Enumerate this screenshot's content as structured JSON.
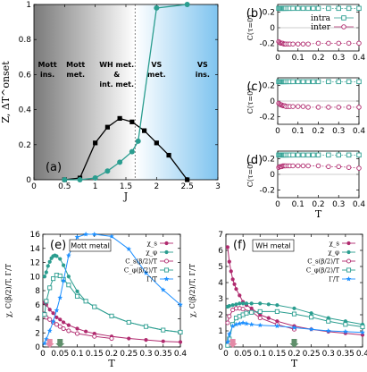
{
  "colors": {
    "black": "#000000",
    "teal": "#2a9d8f",
    "magenta": "#b02a6e",
    "blue": "#1e90ff",
    "gray_grad": "#8a8a8a",
    "blue_grad": "#7fc4ef",
    "arrow_pink": "#e48aa6",
    "arrow_green": "#5f8f6b"
  },
  "chart_data": [
    {
      "id": "a",
      "panel_label": "(a)",
      "type": "line",
      "xlabel": "J",
      "ylabel": "Z, ΔT^onset",
      "xlim": [
        0,
        3
      ],
      "ylim": [
        0,
        1
      ],
      "xticks": [
        "0",
        "0.5",
        "1",
        "1.5",
        "2",
        "2.5",
        "3"
      ],
      "yticks": [
        "0",
        "0.2",
        "0.4",
        "0.6",
        "0.8",
        "1"
      ],
      "vline": 1.65,
      "regions": [
        {
          "lines": [
            "Mott",
            "ins."
          ],
          "x": 0.22
        },
        {
          "lines": [
            "Mott",
            "met."
          ],
          "x": 0.68
        },
        {
          "lines": [
            "WH met.",
            "&",
            "int. met."
          ],
          "x": 1.35
        },
        {
          "lines": [
            "VS",
            "met."
          ],
          "x": 2.0
        },
        {
          "lines": [
            "VS",
            "ins."
          ],
          "x": 2.75
        }
      ],
      "series": [
        {
          "marker": "square",
          "color": "black",
          "x": [
            0.5,
            0.75,
            1.0,
            1.2,
            1.4,
            1.6,
            1.8,
            2.0,
            2.2,
            2.5
          ],
          "y": [
            0.0,
            0.01,
            0.21,
            0.3,
            0.35,
            0.33,
            0.28,
            0.21,
            0.14,
            0.0
          ]
        },
        {
          "marker": "circle",
          "color": "teal",
          "x": [
            0.5,
            0.75,
            1.0,
            1.2,
            1.4,
            1.6,
            1.7,
            2.0,
            2.5
          ],
          "y": [
            0.0,
            0.0,
            0.01,
            0.05,
            0.1,
            0.16,
            0.22,
            0.98,
            1.0
          ]
        }
      ]
    },
    {
      "id": "b",
      "panel_label": "(b)",
      "type": "scatter",
      "xlabel": "",
      "ylabel": "C(τ=0)",
      "xlim": [
        0,
        0.4
      ],
      "ylim": [
        -0.3,
        0.3
      ],
      "xticks": [
        "0",
        "0.1",
        "0.2",
        "0.3",
        "0.4"
      ],
      "yticks": [
        "-0.2",
        "0",
        "0.2"
      ],
      "series": [
        {
          "name": "intra",
          "marker": "square",
          "color": "teal",
          "x": [
            0.005,
            0.01,
            0.015,
            0.02,
            0.025,
            0.03,
            0.035,
            0.04,
            0.05,
            0.06,
            0.075,
            0.1,
            0.125,
            0.15,
            0.175,
            0.2,
            0.25,
            0.3,
            0.35,
            0.4
          ],
          "y": [
            0.25,
            0.25,
            0.25,
            0.25,
            0.25,
            0.25,
            0.25,
            0.25,
            0.25,
            0.25,
            0.25,
            0.25,
            0.25,
            0.25,
            0.25,
            0.25,
            0.25,
            0.25,
            0.25,
            0.25
          ]
        },
        {
          "name": "inter",
          "marker": "circle",
          "color": "magenta",
          "x": [
            0.005,
            0.01,
            0.015,
            0.02,
            0.025,
            0.03,
            0.035,
            0.04,
            0.05,
            0.06,
            0.075,
            0.1,
            0.125,
            0.15,
            0.2,
            0.25,
            0.3,
            0.35,
            0.4
          ],
          "y": [
            -0.18,
            -0.19,
            -0.2,
            -0.2,
            -0.2,
            -0.21,
            -0.21,
            -0.21,
            -0.21,
            -0.21,
            -0.21,
            -0.21,
            -0.21,
            -0.21,
            -0.2,
            -0.2,
            -0.2,
            -0.2,
            -0.2
          ]
        }
      ]
    },
    {
      "id": "c",
      "panel_label": "(c)",
      "type": "scatter",
      "xlabel": "",
      "ylabel": "C(τ=0)",
      "xlim": [
        0,
        0.4
      ],
      "ylim": [
        -0.3,
        0.3
      ],
      "xticks": [
        "0",
        "0.1",
        "0.2",
        "0.3",
        "0.4"
      ],
      "yticks": [
        "-0.2",
        "0",
        "0.2"
      ],
      "series": [
        {
          "name": "intra",
          "marker": "square",
          "color": "teal",
          "x": [
            0.005,
            0.01,
            0.015,
            0.02,
            0.025,
            0.03,
            0.035,
            0.04,
            0.05,
            0.06,
            0.075,
            0.1,
            0.125,
            0.15,
            0.175,
            0.2,
            0.25,
            0.3,
            0.35,
            0.4
          ],
          "y": [
            0.25,
            0.25,
            0.25,
            0.25,
            0.25,
            0.25,
            0.25,
            0.25,
            0.25,
            0.25,
            0.25,
            0.25,
            0.25,
            0.25,
            0.25,
            0.25,
            0.25,
            0.25,
            0.25,
            0.25
          ]
        },
        {
          "name": "inter",
          "marker": "circle",
          "color": "magenta",
          "x": [
            0.005,
            0.01,
            0.015,
            0.02,
            0.025,
            0.03,
            0.035,
            0.04,
            0.05,
            0.06,
            0.075,
            0.1,
            0.125,
            0.15,
            0.2,
            0.25,
            0.3,
            0.35,
            0.4
          ],
          "y": [
            -0.03,
            -0.04,
            -0.05,
            -0.05,
            -0.06,
            -0.06,
            -0.06,
            -0.07,
            -0.07,
            -0.07,
            -0.07,
            -0.07,
            -0.07,
            -0.08,
            -0.08,
            -0.08,
            -0.08,
            -0.08,
            -0.08
          ]
        }
      ]
    },
    {
      "id": "d",
      "panel_label": "(d)",
      "type": "scatter",
      "xlabel": "T",
      "ylabel": "C(τ=0)",
      "xlim": [
        0,
        0.4
      ],
      "ylim": [
        -0.3,
        0.3
      ],
      "xticks": [
        "0",
        "0.1",
        "0.2",
        "0.3",
        "0.4"
      ],
      "yticks": [
        "-0.2",
        "0",
        "0.2"
      ],
      "series": [
        {
          "name": "intra",
          "marker": "square",
          "color": "teal",
          "x": [
            0.005,
            0.01,
            0.015,
            0.02,
            0.025,
            0.03,
            0.035,
            0.04,
            0.05,
            0.06,
            0.075,
            0.1,
            0.125,
            0.15,
            0.175,
            0.2,
            0.25,
            0.3,
            0.35,
            0.4
          ],
          "y": [
            0.25,
            0.25,
            0.25,
            0.25,
            0.25,
            0.25,
            0.25,
            0.25,
            0.25,
            0.25,
            0.25,
            0.25,
            0.25,
            0.25,
            0.25,
            0.25,
            0.25,
            0.25,
            0.25,
            0.25
          ]
        },
        {
          "name": "inter",
          "marker": "circle",
          "color": "magenta",
          "x": [
            0.005,
            0.01,
            0.015,
            0.02,
            0.025,
            0.03,
            0.035,
            0.04,
            0.05,
            0.06,
            0.075,
            0.1,
            0.125,
            0.15,
            0.2,
            0.25,
            0.3,
            0.35,
            0.4
          ],
          "y": [
            0.09,
            0.1,
            0.1,
            0.1,
            0.11,
            0.11,
            0.11,
            0.11,
            0.11,
            0.11,
            0.11,
            0.11,
            0.11,
            0.11,
            0.11,
            0.1,
            0.1,
            0.09,
            0.08
          ]
        }
      ]
    },
    {
      "id": "e",
      "panel_label": "(e)",
      "panel_title": "Mott metal",
      "type": "line",
      "xlabel": "T",
      "ylabel": "χ, C(β/2)/T, Γ/T",
      "xlim": [
        0,
        0.4
      ],
      "ylim": [
        0,
        16
      ],
      "xticks": [
        "0",
        "0.05",
        "0.1",
        "0.15",
        "0.2",
        "0.25",
        "0.3",
        "0.35",
        "0.4"
      ],
      "yticks": [
        "0",
        "2",
        "4",
        "6",
        "8",
        "10",
        "12",
        "14",
        "16"
      ],
      "arrows": [
        {
          "x": 0.02,
          "color": "arrow_pink"
        },
        {
          "x": 0.05,
          "color": "arrow_green"
        }
      ],
      "series": [
        {
          "name": "χ_s",
          "marker": "filled-circle",
          "color": "magenta",
          "x": [
            0.005,
            0.01,
            0.02,
            0.03,
            0.04,
            0.05,
            0.06,
            0.075,
            0.1,
            0.125,
            0.15,
            0.2,
            0.25,
            0.3,
            0.35,
            0.4
          ],
          "y": [
            6.3,
            6.0,
            5.3,
            4.8,
            4.2,
            3.9,
            3.5,
            3.1,
            2.6,
            2.2,
            1.9,
            1.5,
            1.2,
            1.0,
            0.8,
            0.7
          ]
        },
        {
          "name": "χ_φ",
          "marker": "filled-circle",
          "color": "teal",
          "x": [
            0.005,
            0.01,
            0.015,
            0.02,
            0.025,
            0.03,
            0.035,
            0.04,
            0.05,
            0.06,
            0.075,
            0.1,
            0.125,
            0.15,
            0.2,
            0.25,
            0.3,
            0.35,
            0.4
          ],
          "y": [
            10.0,
            10.6,
            11.5,
            12.1,
            12.6,
            12.9,
            13.0,
            12.9,
            12.5,
            11.6,
            10.0,
            7.9,
            6.5,
            5.7,
            4.4,
            3.5,
            2.9,
            2.4,
            2.1
          ]
        },
        {
          "name": "C_s(β/2)/T",
          "marker": "open-circle",
          "color": "magenta",
          "x": [
            0.005,
            0.01,
            0.02,
            0.03,
            0.04,
            0.05,
            0.06,
            0.075,
            0.1,
            0.15,
            0.2
          ],
          "y": [
            4.7,
            4.2,
            3.9,
            3.5,
            3.2,
            2.9,
            2.6,
            2.3,
            1.9,
            1.5,
            1.2
          ]
        },
        {
          "name": "C_φ(β/2)/T",
          "marker": "open-square",
          "color": "teal",
          "x": [
            0.005,
            0.01,
            0.02,
            0.03,
            0.04,
            0.05,
            0.06,
            0.075,
            0.1,
            0.125,
            0.15,
            0.2,
            0.25,
            0.3,
            0.35,
            0.4
          ],
          "y": [
            4.6,
            6.5,
            8.4,
            9.7,
            10.2,
            10.1,
            9.6,
            8.8,
            7.2,
            6.5,
            5.7,
            4.4,
            3.5,
            2.9,
            2.4,
            2.1
          ]
        },
        {
          "name": "Γ/T",
          "marker": "star",
          "color": "blue",
          "x": [
            0.005,
            0.01,
            0.02,
            0.03,
            0.04,
            0.05,
            0.06,
            0.075,
            0.1,
            0.125,
            0.15,
            0.2,
            0.25,
            0.3,
            0.35,
            0.4
          ],
          "y": [
            0.5,
            1.1,
            2.3,
            3.6,
            5.2,
            7.0,
            9.4,
            13.0,
            15.6,
            16.0,
            16.0,
            15.7,
            13.9,
            10.5,
            8.1,
            6.0
          ]
        }
      ]
    },
    {
      "id": "f",
      "panel_label": "(f)",
      "panel_title": "WH metal",
      "type": "line",
      "xlabel": "T",
      "ylabel": "χ, C(β/2)/T, Γ/T",
      "xlim": [
        0,
        0.4
      ],
      "ylim": [
        0,
        7
      ],
      "xticks": [
        "0",
        "0.05",
        "0.1",
        "0.15",
        "0.2",
        "0.25",
        "0.3",
        "0.35",
        "0.4"
      ],
      "yticks": [
        "0",
        "1",
        "2",
        "3",
        "4",
        "5",
        "6",
        "7"
      ],
      "arrows": [
        {
          "x": 0.02,
          "color": "arrow_pink"
        },
        {
          "x": 0.2,
          "color": "arrow_green"
        }
      ],
      "series": [
        {
          "name": "χ_s",
          "marker": "filled-circle",
          "color": "magenta",
          "x": [
            0.005,
            0.01,
            0.015,
            0.02,
            0.025,
            0.03,
            0.04,
            0.05,
            0.06,
            0.075,
            0.1,
            0.125,
            0.15,
            0.2,
            0.25,
            0.3,
            0.35,
            0.4
          ],
          "y": [
            6.2,
            5.3,
            4.7,
            4.2,
            3.9,
            3.6,
            3.2,
            2.8,
            2.6,
            2.4,
            2.0,
            1.8,
            1.6,
            1.3,
            1.1,
            0.95,
            0.85,
            0.75
          ]
        },
        {
          "name": "χ_φ",
          "marker": "filled-circle",
          "color": "teal",
          "x": [
            0.005,
            0.01,
            0.02,
            0.03,
            0.04,
            0.05,
            0.06,
            0.075,
            0.1,
            0.125,
            0.15,
            0.2,
            0.25,
            0.3,
            0.35,
            0.4
          ],
          "y": [
            2.5,
            2.55,
            2.6,
            2.65,
            2.7,
            2.7,
            2.7,
            2.7,
            2.7,
            2.65,
            2.6,
            2.4,
            2.1,
            1.8,
            1.6,
            1.4
          ]
        },
        {
          "name": "C_s(β/2)/T",
          "marker": "open-circle",
          "color": "magenta",
          "x": [
            0.005,
            0.01,
            0.02,
            0.03,
            0.04,
            0.05,
            0.075,
            0.1,
            0.15,
            0.2
          ],
          "y": [
            1.5,
            1.9,
            2.3,
            2.4,
            2.4,
            2.35,
            2.2,
            1.8,
            1.4,
            1.1
          ]
        },
        {
          "name": "C_φ(β/2)/T",
          "marker": "open-square",
          "color": "teal",
          "x": [
            0.005,
            0.01,
            0.02,
            0.03,
            0.04,
            0.05,
            0.06,
            0.075,
            0.1,
            0.15,
            0.2,
            0.25,
            0.3,
            0.35,
            0.4
          ],
          "y": [
            0.1,
            0.5,
            1.4,
            1.8,
            1.9,
            2.0,
            2.1,
            2.15,
            2.2,
            2.2,
            2.05,
            1.85,
            1.6,
            1.4,
            1.25
          ]
        },
        {
          "name": "Γ/T",
          "marker": "star",
          "color": "blue",
          "x": [
            0.005,
            0.01,
            0.02,
            0.03,
            0.04,
            0.05,
            0.06,
            0.075,
            0.1,
            0.15,
            0.2,
            0.25,
            0.3,
            0.35,
            0.4
          ],
          "y": [
            0.3,
            0.8,
            1.3,
            1.4,
            1.45,
            1.5,
            1.45,
            1.4,
            1.35,
            1.3,
            1.2,
            1.1,
            1.0,
            0.95,
            0.9
          ]
        }
      ]
    }
  ]
}
